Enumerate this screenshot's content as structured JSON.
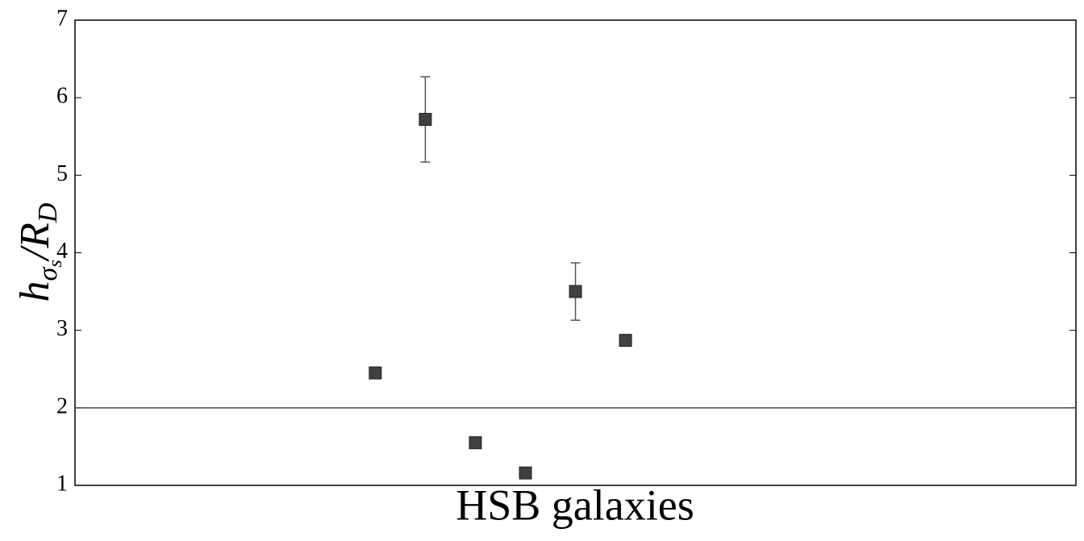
{
  "chart_data": {
    "type": "scatter",
    "xlabel": "HSB galaxies",
    "ylabel": [
      "h",
      "σ",
      "s",
      "/R",
      "D"
    ],
    "x": [
      6,
      7,
      8,
      9,
      10,
      11
    ],
    "values": [
      2.45,
      5.72,
      1.55,
      1.16,
      3.5,
      2.87
    ],
    "errors": [
      null,
      0.55,
      null,
      null,
      0.37,
      null
    ],
    "color": "#404040",
    "hline": 2,
    "xlim": [
      0,
      20
    ],
    "ylim": [
      1,
      7
    ],
    "yticks": [
      1,
      2,
      3,
      4,
      5,
      6,
      7
    ]
  }
}
